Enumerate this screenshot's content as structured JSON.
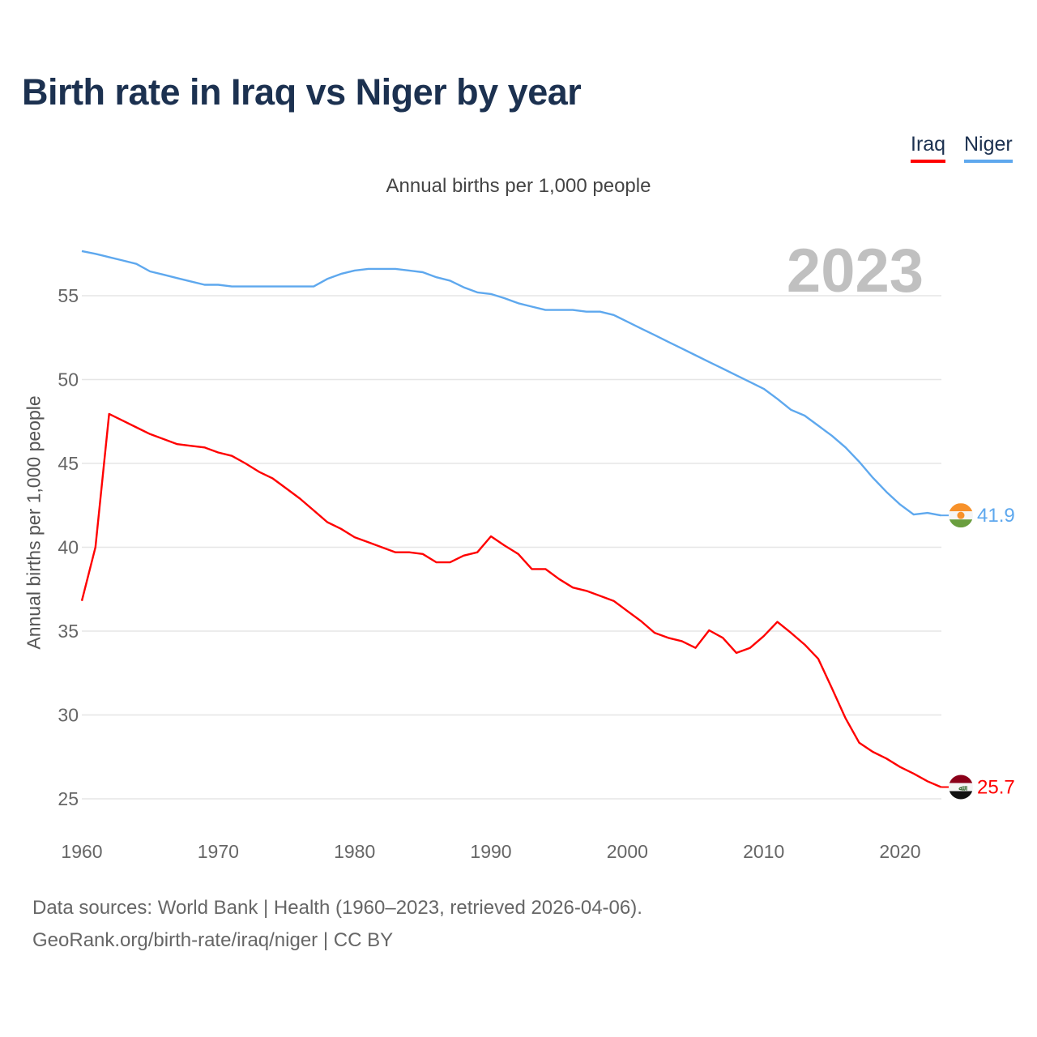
{
  "chart_data": {
    "type": "line",
    "title": "Birth rate in Iraq vs Niger by year",
    "subtitle": "Annual births per 1,000 people",
    "ylabel": "Annual births per 1,000 people",
    "xlabel": "",
    "year_badge": "2023",
    "xlim": [
      1960,
      2023
    ],
    "ylim": [
      24,
      58
    ],
    "x_ticks": [
      1960,
      1970,
      1980,
      1990,
      2000,
      2010,
      2020
    ],
    "y_ticks": [
      25,
      30,
      35,
      40,
      45,
      50,
      55
    ],
    "grid": true,
    "legend_position": "top-right",
    "x": [
      1960,
      1961,
      1962,
      1963,
      1964,
      1965,
      1966,
      1967,
      1968,
      1969,
      1970,
      1971,
      1972,
      1973,
      1974,
      1975,
      1976,
      1977,
      1978,
      1979,
      1980,
      1981,
      1982,
      1983,
      1984,
      1985,
      1986,
      1987,
      1988,
      1989,
      1990,
      1991,
      1992,
      1993,
      1994,
      1995,
      1996,
      1997,
      1998,
      1999,
      2000,
      2001,
      2002,
      2003,
      2004,
      2005,
      2006,
      2007,
      2008,
      2009,
      2010,
      2011,
      2012,
      2013,
      2014,
      2015,
      2016,
      2017,
      2018,
      2019,
      2020,
      2021,
      2022,
      2023
    ],
    "series": [
      {
        "name": "Iraq",
        "color": "#ff0000",
        "end_label": "25.7",
        "flag": "iraq-flag",
        "values": [
          36.8,
          40.0,
          47.95,
          47.55,
          47.15,
          46.75,
          46.45,
          46.15,
          46.05,
          45.95,
          45.65,
          45.45,
          45.0,
          44.5,
          44.1,
          43.5,
          42.9,
          42.2,
          41.5,
          41.1,
          40.6,
          40.3,
          40.0,
          39.7,
          39.7,
          39.6,
          39.1,
          39.1,
          39.5,
          39.7,
          40.65,
          40.1,
          39.6,
          38.7,
          38.7,
          38.1,
          37.6,
          37.4,
          37.1,
          36.8,
          36.2,
          35.6,
          34.9,
          34.6,
          34.4,
          34.0,
          35.05,
          34.6,
          33.7,
          34.0,
          34.7,
          35.55,
          34.9,
          34.2,
          33.35,
          31.6,
          29.8,
          28.35,
          27.8,
          27.4,
          26.9,
          26.5,
          26.05,
          25.7
        ]
      },
      {
        "name": "Niger",
        "color": "#5ea8ee",
        "end_label": "41.9",
        "flag": "niger-flag",
        "values": [
          57.66,
          57.5,
          57.3,
          57.1,
          56.9,
          56.45,
          56.25,
          56.05,
          55.85,
          55.65,
          55.65,
          55.55,
          55.55,
          55.55,
          55.55,
          55.55,
          55.55,
          55.55,
          56.0,
          56.3,
          56.5,
          56.6,
          56.6,
          56.6,
          56.5,
          56.4,
          56.1,
          55.9,
          55.5,
          55.2,
          55.1,
          54.85,
          54.55,
          54.35,
          54.15,
          54.15,
          54.15,
          54.05,
          54.05,
          53.85,
          53.45,
          53.05,
          52.65,
          52.25,
          51.85,
          51.45,
          51.05,
          50.65,
          50.25,
          49.85,
          49.45,
          48.85,
          48.2,
          47.85,
          47.25,
          46.65,
          45.95,
          45.1,
          44.15,
          43.3,
          42.55,
          41.95,
          42.05,
          41.9
        ]
      }
    ]
  },
  "footer": {
    "line1": "Data sources: World Bank | Health (1960–2023, retrieved 2026-04-06).",
    "line2": "GeoRank.org/birth-rate/iraq/niger | CC BY"
  }
}
